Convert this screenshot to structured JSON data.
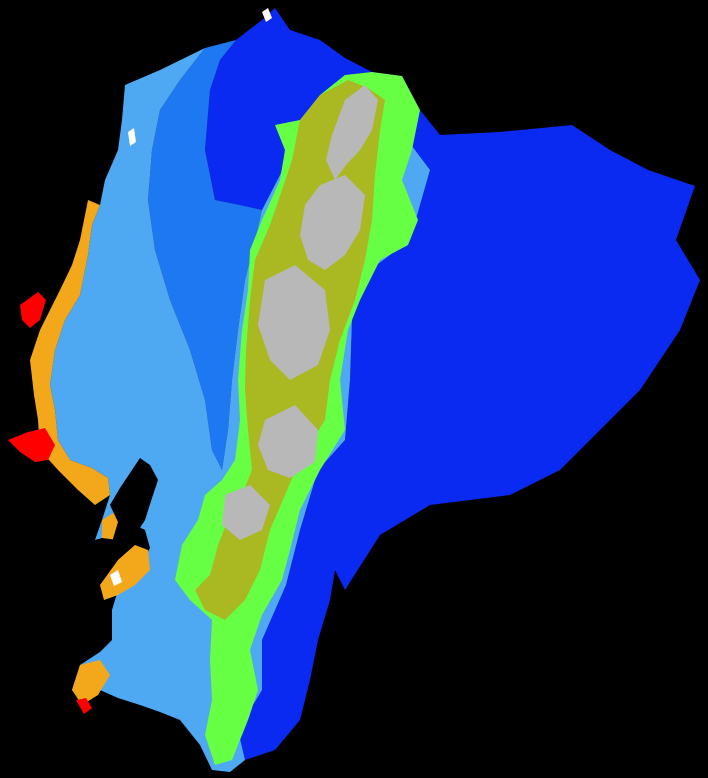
{
  "map": {
    "background": "#000000",
    "zones": [
      {
        "key": "amazon-lowland",
        "color": "#0A2AF2"
      },
      {
        "key": "coastal-humid",
        "color": "#4EA9F2"
      },
      {
        "key": "northwest-humid",
        "color": "#1E78F2"
      },
      {
        "key": "andes-highland",
        "color": "#66FF44"
      },
      {
        "key": "andes-slope",
        "color": "#AAB822"
      },
      {
        "key": "paramo",
        "color": "#B8B8B8"
      },
      {
        "key": "coastal-dry",
        "color": "#F3A81B"
      },
      {
        "key": "coastal-arid",
        "color": "#FF0000"
      },
      {
        "key": "water-body",
        "color": "#000000"
      },
      {
        "key": "salt-flat",
        "color": "#FFFFFF"
      }
    ]
  }
}
